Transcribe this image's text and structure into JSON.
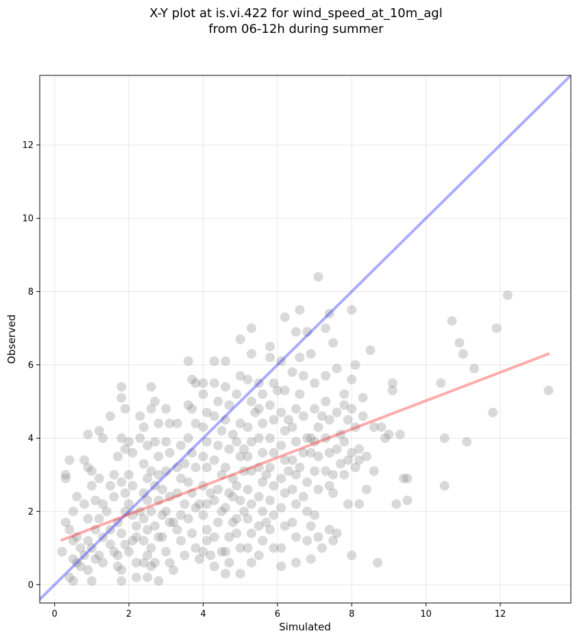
{
  "chart_data": {
    "type": "scatter",
    "title_line1": "X-Y plot at is.vi.422 for wind_speed_at_10m_agl",
    "title_line2": "from 06-12h during summer",
    "xlabel": "Simulated",
    "ylabel": "Observed",
    "xlim": [
      -0.4,
      13.9
    ],
    "ylim": [
      -0.5,
      13.9
    ],
    "xticks": [
      0,
      2,
      4,
      6,
      8,
      10,
      12
    ],
    "yticks": [
      0,
      2,
      4,
      6,
      8,
      10,
      12
    ],
    "grid": true,
    "point_color": "#808080",
    "one_to_one_color": "#0000ff",
    "fit_color": "#ff0000",
    "one_to_one_line": {
      "x": [
        -0.4,
        13.9
      ],
      "y": [
        -0.4,
        13.9
      ]
    },
    "fit_line": {
      "x": [
        0.2,
        13.3
      ],
      "y": [
        1.22,
        6.3
      ]
    },
    "points": [
      [
        0.2,
        0.9
      ],
      [
        0.3,
        3.0
      ],
      [
        0.3,
        2.9
      ],
      [
        0.4,
        3.4
      ],
      [
        0.5,
        2.0
      ],
      [
        0.3,
        1.7
      ],
      [
        0.4,
        1.5
      ],
      [
        0.5,
        1.2
      ],
      [
        0.6,
        2.4
      ],
      [
        0.6,
        0.6
      ],
      [
        0.4,
        0.2
      ],
      [
        0.5,
        0.1
      ],
      [
        0.7,
        1.0
      ],
      [
        0.8,
        0.8
      ],
      [
        0.9,
        1.2
      ],
      [
        0.8,
        3.4
      ],
      [
        0.9,
        3.2
      ],
      [
        0.9,
        4.1
      ],
      [
        1.0,
        3.1
      ],
      [
        1.0,
        2.7
      ],
      [
        1.1,
        2.3
      ],
      [
        0.9,
        1.8
      ],
      [
        1.0,
        1.0
      ],
      [
        1.1,
        0.7
      ],
      [
        0.9,
        0.4
      ],
      [
        1.0,
        0.1
      ],
      [
        1.2,
        4.2
      ],
      [
        1.3,
        4.0
      ],
      [
        1.2,
        2.9
      ],
      [
        1.3,
        2.2
      ],
      [
        1.2,
        1.8
      ],
      [
        1.3,
        1.3
      ],
      [
        1.2,
        0.8
      ],
      [
        1.3,
        0.6
      ],
      [
        1.5,
        4.6
      ],
      [
        1.5,
        2.7
      ],
      [
        1.6,
        2.4
      ],
      [
        1.5,
        1.5
      ],
      [
        1.6,
        0.9
      ],
      [
        1.7,
        0.5
      ],
      [
        1.8,
        5.4
      ],
      [
        1.8,
        5.1
      ],
      [
        1.9,
        4.8
      ],
      [
        1.8,
        4.0
      ],
      [
        1.9,
        3.7
      ],
      [
        1.7,
        3.5
      ],
      [
        1.8,
        2.8
      ],
      [
        1.9,
        2.5
      ],
      [
        1.9,
        2.0
      ],
      [
        1.7,
        1.7
      ],
      [
        1.8,
        1.4
      ],
      [
        1.9,
        1.1
      ],
      [
        1.7,
        0.8
      ],
      [
        1.8,
        0.4
      ],
      [
        1.8,
        0.1
      ],
      [
        2.0,
        3.9
      ],
      [
        2.1,
        3.6
      ],
      [
        2.0,
        3.0
      ],
      [
        2.1,
        2.7
      ],
      [
        2.0,
        2.2
      ],
      [
        2.1,
        1.9
      ],
      [
        2.2,
        1.6
      ],
      [
        2.1,
        1.2
      ],
      [
        2.0,
        0.9
      ],
      [
        2.2,
        0.6
      ],
      [
        2.2,
        0.2
      ],
      [
        2.3,
        4.6
      ],
      [
        2.4,
        4.3
      ],
      [
        2.3,
        4.0
      ],
      [
        2.5,
        3.8
      ],
      [
        2.4,
        3.3
      ],
      [
        2.5,
        2.9
      ],
      [
        2.4,
        2.5
      ],
      [
        2.5,
        2.3
      ],
      [
        2.4,
        1.8
      ],
      [
        2.5,
        1.5
      ],
      [
        2.4,
        1.2
      ],
      [
        2.5,
        0.8
      ],
      [
        2.6,
        0.5
      ],
      [
        2.5,
        0.2
      ],
      [
        2.6,
        5.4
      ],
      [
        2.6,
        4.8
      ],
      [
        2.7,
        5.0
      ],
      [
        2.8,
        4.4
      ],
      [
        2.7,
        3.9
      ],
      [
        2.8,
        3.5
      ],
      [
        2.6,
        3.1
      ],
      [
        2.7,
        2.7
      ],
      [
        2.8,
        2.3
      ],
      [
        2.6,
        2.0
      ],
      [
        2.7,
        1.6
      ],
      [
        2.8,
        1.3
      ],
      [
        2.6,
        1.0
      ],
      [
        2.7,
        0.6
      ],
      [
        2.8,
        0.1
      ],
      [
        3.0,
        4.8
      ],
      [
        3.1,
        4.4
      ],
      [
        3.0,
        3.9
      ],
      [
        3.1,
        3.6
      ],
      [
        3.0,
        3.1
      ],
      [
        2.9,
        2.6
      ],
      [
        3.1,
        2.4
      ],
      [
        3.0,
        2.0
      ],
      [
        3.1,
        1.7
      ],
      [
        2.9,
        1.3
      ],
      [
        3.0,
        0.9
      ],
      [
        3.1,
        0.6
      ],
      [
        3.2,
        0.4
      ],
      [
        3.3,
        4.4
      ],
      [
        3.4,
        3.8
      ],
      [
        3.3,
        3.2
      ],
      [
        3.4,
        2.9
      ],
      [
        3.3,
        2.5
      ],
      [
        3.5,
        2.2
      ],
      [
        3.4,
        1.9
      ],
      [
        3.3,
        1.5
      ],
      [
        3.4,
        1.2
      ],
      [
        3.5,
        0.8
      ],
      [
        3.6,
        6.1
      ],
      [
        3.7,
        5.6
      ],
      [
        3.6,
        4.9
      ],
      [
        3.8,
        5.5
      ],
      [
        3.7,
        4.8
      ],
      [
        3.8,
        4.4
      ],
      [
        3.6,
        4.0
      ],
      [
        3.7,
        3.6
      ],
      [
        3.8,
        3.2
      ],
      [
        3.6,
        2.8
      ],
      [
        3.7,
        2.5
      ],
      [
        3.8,
        2.1
      ],
      [
        3.6,
        1.8
      ],
      [
        3.7,
        1.4
      ],
      [
        3.8,
        1.0
      ],
      [
        3.9,
        0.7
      ],
      [
        4.0,
        5.5
      ],
      [
        4.0,
        5.2
      ],
      [
        4.1,
        4.7
      ],
      [
        4.0,
        4.3
      ],
      [
        4.1,
        3.9
      ],
      [
        4.0,
        3.5
      ],
      [
        4.1,
        3.2
      ],
      [
        4.0,
        2.7
      ],
      [
        4.1,
        2.2
      ],
      [
        4.0,
        1.9
      ],
      [
        4.1,
        1.5
      ],
      [
        4.0,
        0.9
      ],
      [
        4.2,
        0.8
      ],
      [
        4.3,
        6.1
      ],
      [
        4.3,
        5.5
      ],
      [
        4.4,
        5.0
      ],
      [
        4.3,
        4.6
      ],
      [
        4.5,
        4.2
      ],
      [
        4.4,
        3.8
      ],
      [
        4.3,
        3.4
      ],
      [
        4.5,
        3.0
      ],
      [
        4.4,
        2.6
      ],
      [
        4.3,
        2.3
      ],
      [
        4.5,
        2.0
      ],
      [
        4.4,
        1.7
      ],
      [
        4.3,
        1.3
      ],
      [
        4.5,
        0.9
      ],
      [
        4.3,
        0.5
      ],
      [
        4.6,
        6.1
      ],
      [
        4.6,
        5.4
      ],
      [
        4.7,
        4.9
      ],
      [
        4.6,
        4.5
      ],
      [
        4.8,
        4.1
      ],
      [
        4.7,
        3.7
      ],
      [
        4.6,
        3.2
      ],
      [
        4.8,
        2.9
      ],
      [
        4.7,
        2.5
      ],
      [
        4.6,
        2.1
      ],
      [
        4.8,
        1.7
      ],
      [
        4.7,
        1.3
      ],
      [
        4.6,
        0.9
      ],
      [
        4.7,
        0.6
      ],
      [
        4.6,
        0.3
      ],
      [
        4.9,
        5.2
      ],
      [
        5.0,
        6.7
      ],
      [
        5.0,
        5.7
      ],
      [
        5.0,
        4.4
      ],
      [
        4.9,
        3.9
      ],
      [
        5.0,
        3.5
      ],
      [
        5.1,
        3.1
      ],
      [
        4.9,
        2.7
      ],
      [
        5.0,
        2.3
      ],
      [
        5.1,
        2.0
      ],
      [
        4.9,
        1.4
      ],
      [
        5.0,
        1.0
      ],
      [
        5.0,
        0.3
      ],
      [
        5.3,
        7.0
      ],
      [
        5.3,
        6.3
      ],
      [
        5.2,
        5.6
      ],
      [
        5.3,
        5.0
      ],
      [
        5.2,
        4.3
      ],
      [
        5.3,
        3.9
      ],
      [
        5.2,
        3.5
      ],
      [
        5.3,
        3.1
      ],
      [
        5.2,
        2.6
      ],
      [
        5.3,
        2.2
      ],
      [
        5.2,
        1.8
      ],
      [
        5.3,
        1.4
      ],
      [
        5.2,
        1.0
      ],
      [
        5.3,
        0.6
      ],
      [
        5.5,
        5.5
      ],
      [
        5.6,
        5.2
      ],
      [
        5.5,
        4.8
      ],
      [
        5.6,
        4.4
      ],
      [
        5.5,
        4.0
      ],
      [
        5.6,
        3.6
      ],
      [
        5.5,
        3.2
      ],
      [
        5.6,
        2.8
      ],
      [
        5.5,
        2.4
      ],
      [
        5.6,
        2.0
      ],
      [
        5.5,
        1.6
      ],
      [
        5.6,
        1.2
      ],
      [
        5.5,
        0.8
      ],
      [
        5.8,
        6.5
      ],
      [
        5.8,
        6.2
      ],
      [
        5.9,
        5.5
      ],
      [
        5.8,
        4.9
      ],
      [
        5.9,
        4.5
      ],
      [
        5.8,
        4.0
      ],
      [
        5.9,
        3.6
      ],
      [
        5.8,
        3.2
      ],
      [
        5.9,
        2.7
      ],
      [
        5.8,
        2.3
      ],
      [
        5.9,
        1.9
      ],
      [
        5.8,
        1.5
      ],
      [
        5.9,
        1.0
      ],
      [
        6.0,
        5.3
      ],
      [
        6.1,
        6.1
      ],
      [
        6.2,
        5.3
      ],
      [
        6.1,
        4.7
      ],
      [
        6.2,
        4.2
      ],
      [
        6.1,
        3.8
      ],
      [
        6.2,
        3.4
      ],
      [
        6.1,
        2.9
      ],
      [
        6.2,
        2.5
      ],
      [
        6.1,
        2.1
      ],
      [
        6.2,
        1.6
      ],
      [
        6.1,
        1.0
      ],
      [
        6.1,
        0.5
      ],
      [
        6.2,
        7.3
      ],
      [
        6.4,
        5.8
      ],
      [
        6.5,
        6.9
      ],
      [
        6.5,
        4.8
      ],
      [
        6.4,
        4.3
      ],
      [
        6.5,
        3.9
      ],
      [
        6.4,
        3.4
      ],
      [
        6.5,
        3.0
      ],
      [
        6.4,
        2.6
      ],
      [
        6.5,
        2.2
      ],
      [
        6.4,
        1.7
      ],
      [
        6.5,
        1.3
      ],
      [
        6.5,
        0.6
      ],
      [
        6.6,
        7.5
      ],
      [
        6.6,
        6.2
      ],
      [
        6.7,
        5.7
      ],
      [
        6.6,
        5.2
      ],
      [
        6.7,
        4.6
      ],
      [
        6.8,
        4.0
      ],
      [
        6.7,
        3.6
      ],
      [
        6.6,
        3.2
      ],
      [
        6.8,
        2.8
      ],
      [
        6.7,
        2.4
      ],
      [
        6.8,
        2.0
      ],
      [
        6.9,
        1.6
      ],
      [
        6.8,
        1.2
      ],
      [
        6.9,
        0.7
      ],
      [
        6.8,
        6.9
      ],
      [
        6.9,
        6.3
      ],
      [
        7.0,
        5.5
      ],
      [
        7.1,
        8.4
      ],
      [
        7.0,
        4.8
      ],
      [
        7.1,
        4.3
      ],
      [
        7.0,
        3.9
      ],
      [
        7.1,
        3.5
      ],
      [
        7.0,
        3.1
      ],
      [
        7.1,
        2.6
      ],
      [
        7.0,
        1.9
      ],
      [
        7.1,
        1.3
      ],
      [
        7.2,
        1.0
      ],
      [
        7.3,
        7.0
      ],
      [
        7.3,
        5.7
      ],
      [
        7.3,
        5.0
      ],
      [
        7.4,
        4.5
      ],
      [
        7.3,
        4.0
      ],
      [
        7.4,
        3.6
      ],
      [
        7.3,
        3.1
      ],
      [
        7.4,
        2.7
      ],
      [
        7.5,
        2.5
      ],
      [
        7.4,
        1.5
      ],
      [
        7.5,
        1.2
      ],
      [
        7.4,
        7.4
      ],
      [
        7.5,
        6.6
      ],
      [
        7.6,
        5.9
      ],
      [
        7.6,
        4.7
      ],
      [
        7.7,
        4.1
      ],
      [
        7.6,
        3.7
      ],
      [
        7.7,
        3.3
      ],
      [
        7.6,
        1.4
      ],
      [
        7.8,
        5.2
      ],
      [
        7.8,
        4.9
      ],
      [
        7.9,
        4.5
      ],
      [
        7.8,
        3.9
      ],
      [
        7.9,
        3.4
      ],
      [
        7.8,
        3.0
      ],
      [
        7.9,
        2.2
      ],
      [
        8.0,
        5.6
      ],
      [
        8.0,
        4.8
      ],
      [
        8.1,
        4.3
      ],
      [
        8.0,
        3.6
      ],
      [
        8.1,
        3.2
      ],
      [
        8.0,
        7.5
      ],
      [
        8.0,
        0.8
      ],
      [
        8.1,
        6.0
      ],
      [
        8.2,
        3.7
      ],
      [
        8.2,
        2.2
      ],
      [
        8.3,
        5.1
      ],
      [
        8.3,
        4.6
      ],
      [
        8.4,
        3.5
      ],
      [
        8.4,
        2.6
      ],
      [
        8.5,
        6.4
      ],
      [
        8.6,
        3.1
      ],
      [
        8.6,
        4.3
      ],
      [
        8.7,
        0.6
      ],
      [
        8.8,
        4.3
      ],
      [
        8.9,
        4.0
      ],
      [
        9.0,
        4.1
      ],
      [
        9.1,
        5.5
      ],
      [
        9.1,
        5.3
      ],
      [
        9.2,
        2.2
      ],
      [
        9.3,
        4.1
      ],
      [
        9.4,
        2.9
      ],
      [
        9.5,
        2.9
      ],
      [
        9.5,
        2.3
      ],
      [
        10.4,
        5.5
      ],
      [
        10.5,
        4.0
      ],
      [
        10.5,
        2.7
      ],
      [
        10.7,
        7.2
      ],
      [
        10.9,
        6.6
      ],
      [
        11.0,
        6.3
      ],
      [
        11.1,
        3.9
      ],
      [
        11.3,
        5.9
      ],
      [
        11.8,
        4.7
      ],
      [
        11.9,
        7.0
      ],
      [
        12.2,
        7.9
      ],
      [
        13.3,
        5.3
      ],
      [
        0.6,
        1.3
      ],
      [
        0.7,
        0.5
      ],
      [
        1.1,
        1.5
      ],
      [
        1.4,
        2.0
      ],
      [
        2.3,
        2.0
      ],
      [
        2.9,
        1.9
      ],
      [
        3.2,
        1.7
      ],
      [
        3.9,
        2.2
      ],
      [
        4.2,
        2.5
      ],
      [
        4.9,
        1.8
      ],
      [
        5.4,
        4.7
      ],
      [
        5.7,
        3.0
      ],
      [
        6.3,
        4.5
      ],
      [
        6.9,
        3.6
      ],
      [
        7.2,
        4.6
      ],
      [
        0.5,
        0.7
      ],
      [
        1.5,
        1.1
      ],
      [
        2.2,
        1.3
      ],
      [
        2.8,
        3.0
      ],
      [
        3.5,
        3.3
      ],
      [
        4.1,
        1.2
      ],
      [
        4.8,
        2.4
      ],
      [
        5.1,
        3.7
      ],
      [
        5.7,
        1.7
      ],
      [
        6.3,
        3.1
      ],
      [
        6.9,
        4.0
      ],
      [
        7.5,
        3.0
      ],
      [
        8.2,
        3.4
      ],
      [
        0.8,
        2.2
      ],
      [
        1.6,
        3.0
      ],
      [
        2.4,
        0.6
      ]
    ]
  }
}
